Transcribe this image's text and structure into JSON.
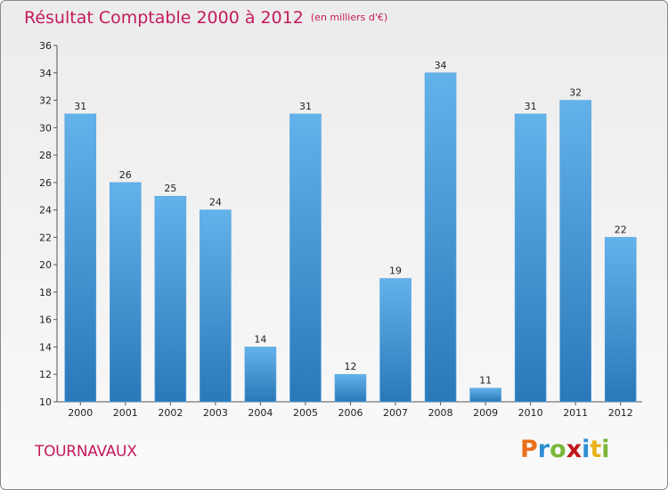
{
  "header": {
    "title": "Résultat Comptable 2000 à 2012",
    "subtitle": "(en milliers d'€)"
  },
  "footer": {
    "commune": "TOURNAVAUX",
    "logo_letters": [
      "P",
      "r",
      "o",
      "x",
      "i",
      "t",
      "i"
    ],
    "logo_colors": [
      "#e8701a",
      "#2e8fd6",
      "#7ab73c",
      "#c0171c",
      "#2e8fd6",
      "#e8b21a",
      "#7ab73c"
    ]
  },
  "colors": {
    "bar_top": "#63b2ea",
    "bar_bottom": "#2a78b8",
    "accent": "#c41a5c"
  },
  "chart_data": {
    "type": "bar",
    "title": "Résultat Comptable 2000 à 2012",
    "subtitle": "(en milliers d'€)",
    "xlabel": "",
    "ylabel": "",
    "categories": [
      "2000",
      "2001",
      "2002",
      "2003",
      "2004",
      "2005",
      "2006",
      "2007",
      "2008",
      "2009",
      "2010",
      "2011",
      "2012"
    ],
    "values": [
      31,
      26,
      25,
      24,
      14,
      31,
      12,
      19,
      34,
      11,
      31,
      32,
      22
    ],
    "ylim": [
      10,
      36
    ],
    "yticks": [
      10,
      12,
      14,
      16,
      18,
      20,
      22,
      24,
      26,
      28,
      30,
      32,
      34,
      36
    ],
    "grid": false,
    "legend": "none"
  }
}
